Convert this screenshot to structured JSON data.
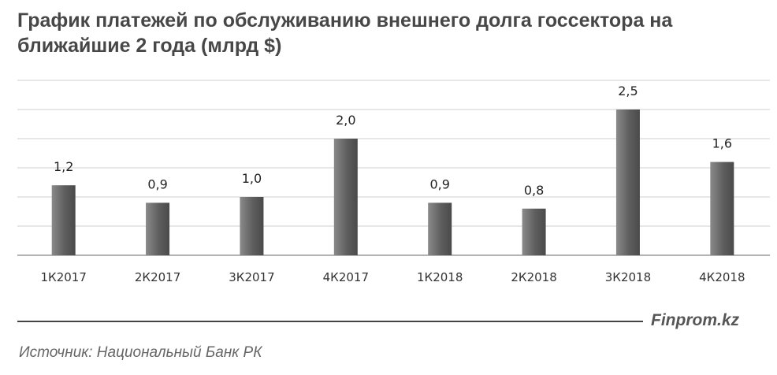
{
  "chart_data": {
    "type": "bar",
    "title": "График платежей по обслуживанию внешнего долга госсектора на ближайшие 2 года (млрд $)",
    "categories": [
      "1К2017",
      "2К2017",
      "3К2017",
      "4К2017",
      "1К2018",
      "2К2018",
      "3К2018",
      "4К2018"
    ],
    "values": [
      1.2,
      0.9,
      1.0,
      2.0,
      0.9,
      0.8,
      2.5,
      1.6
    ],
    "value_labels": [
      "1,2",
      "0,9",
      "1,0",
      "2,0",
      "0,9",
      "0,8",
      "2,5",
      "1,6"
    ],
    "xlabel": "",
    "ylabel": "",
    "ylim": [
      0,
      3.0
    ],
    "grid": true,
    "legend": "none",
    "colors": {
      "bar_light": "#8a8a8a",
      "bar_dark": "#4a4a4a",
      "grid": "#cfcfcf",
      "axis": "#9a9a9a"
    }
  },
  "footer": {
    "brand": "Finprom.kz",
    "source": "Источник: Национальный Банк РК"
  }
}
